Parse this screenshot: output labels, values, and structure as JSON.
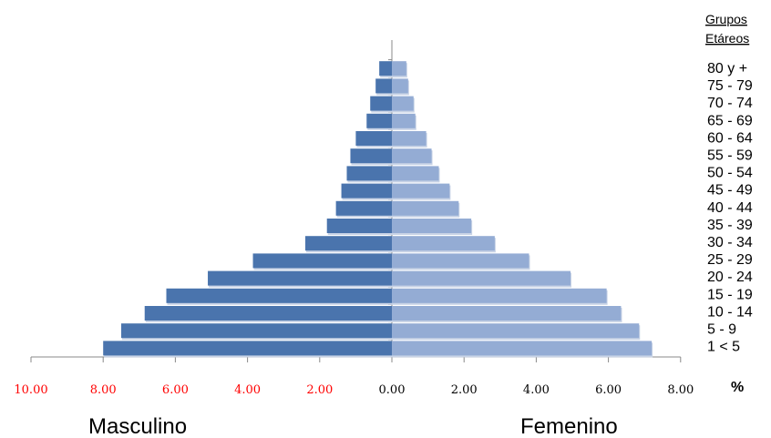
{
  "chart_data": {
    "type": "bar",
    "orientation": "horizontal-population-pyramid",
    "categories": [
      "1 < 5",
      "5 - 9",
      "10 - 14",
      "15 - 19",
      "20 - 24",
      "25 - 29",
      "30 - 34",
      "35 - 39",
      "40 - 44",
      "45 - 49",
      "50 - 54",
      "55 - 59",
      "60 - 64",
      "65 - 69",
      "70 - 74",
      "75 - 79",
      "80 y +"
    ],
    "series": [
      {
        "name": "Masculino",
        "color": "#4a74ad",
        "values": [
          8.0,
          7.5,
          6.85,
          6.25,
          5.1,
          3.85,
          2.4,
          1.8,
          1.55,
          1.4,
          1.25,
          1.15,
          1.0,
          0.7,
          0.6,
          0.45,
          0.35
        ]
      },
      {
        "name": "Femenino",
        "color": "#94acd4",
        "values": [
          7.2,
          6.85,
          6.35,
          5.95,
          4.95,
          3.8,
          2.85,
          2.2,
          1.85,
          1.6,
          1.3,
          1.1,
          0.95,
          0.65,
          0.6,
          0.45,
          0.4
        ]
      }
    ],
    "x_ticks_left": [
      "10.00",
      "8.00",
      "6.00",
      "4.00",
      "2.00"
    ],
    "x_ticks_right": [
      "0.00",
      "2.00",
      "4.00",
      "6.00",
      "8.00"
    ],
    "xlim": [
      -10,
      8
    ],
    "unit": "%",
    "legend_title_lines": [
      "Grupos",
      "Etáreos"
    ],
    "legend_labels": [
      "80 y +",
      "75 - 79",
      "70 - 74",
      "65 - 69",
      "60 - 64",
      "55 - 59",
      "50 - 54",
      "45 - 49",
      "40 - 44",
      "35 - 39",
      "30 - 34",
      "25 - 29",
      "20 - 24",
      "15 - 19",
      "10 - 14",
      "5 - 9",
      "1 <  5"
    ],
    "left_label": "Masculino",
    "right_label": "Femenino",
    "left_tick_color": "#ff0000",
    "right_tick_color": "#000000"
  }
}
